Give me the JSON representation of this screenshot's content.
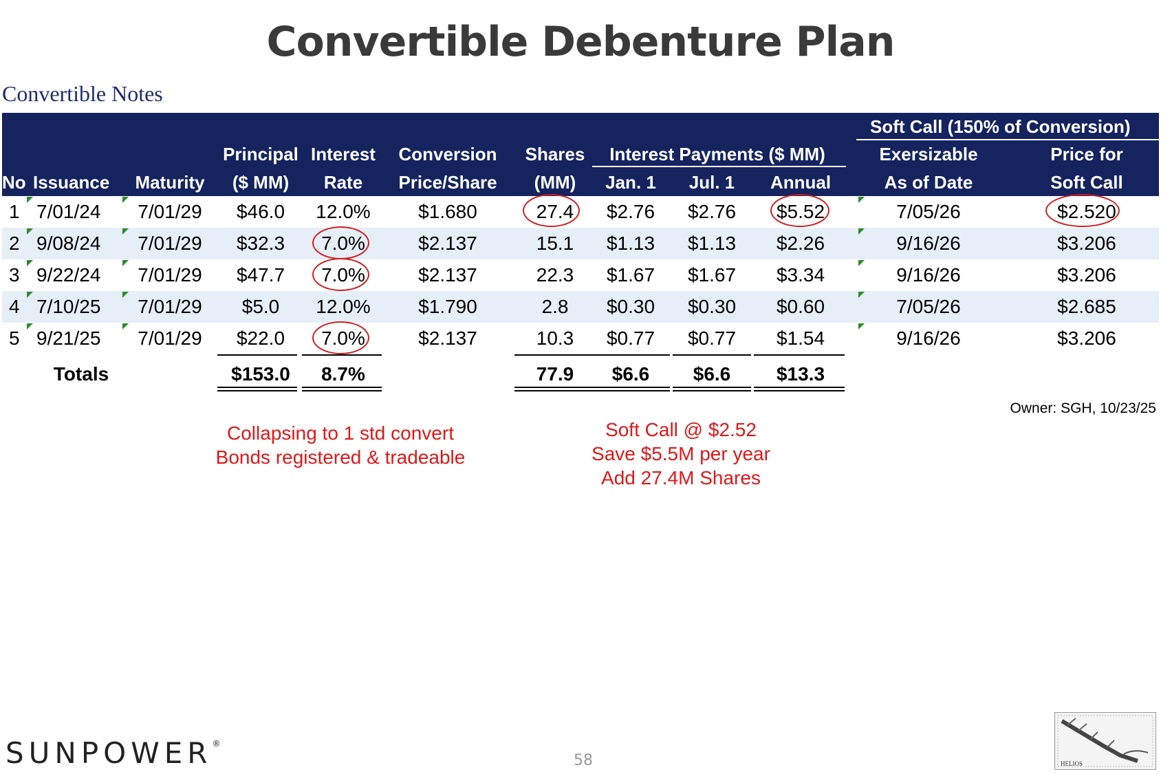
{
  "page": {
    "title": "Convertible Debenture Plan",
    "section": "Convertible Notes",
    "owner": "Owner: SGH, 10/23/25",
    "page_number": "58",
    "logo_text": "SUNPOWER"
  },
  "header": {
    "no": "No",
    "issuance": "Issuance",
    "maturity": "Maturity",
    "principal_1": "Principal",
    "principal_2": "($ MM)",
    "interest_1": "Interest",
    "interest_2": "Rate",
    "conversion_1": "Conversion",
    "conversion_2": "Price/Share",
    "shares_1": "Shares",
    "shares_2": "(MM)",
    "payments_group": "Interest Payments ($ MM)",
    "jan": "Jan. 1",
    "jul": "Jul. 1",
    "annual": "Annual",
    "softcall_group": "Soft Call (150% of Conversion)",
    "exer_1": "Exersizable",
    "exer_2": "As of Date",
    "price_1": "Price for",
    "price_2": "Soft Call"
  },
  "rows": [
    {
      "no": "1",
      "issuance": "7/01/24",
      "maturity": "7/01/29",
      "principal": "$46.0",
      "rate": "12.0%",
      "conv": "$1.680",
      "shares": "27.4",
      "jan": "$2.76",
      "jul": "$2.76",
      "annual": "$5.52",
      "exer": "7/05/26",
      "price": "$2.520"
    },
    {
      "no": "2",
      "issuance": "9/08/24",
      "maturity": "7/01/29",
      "principal": "$32.3",
      "rate": "7.0%",
      "conv": "$2.137",
      "shares": "15.1",
      "jan": "$1.13",
      "jul": "$1.13",
      "annual": "$2.26",
      "exer": "9/16/26",
      "price": "$3.206"
    },
    {
      "no": "3",
      "issuance": "9/22/24",
      "maturity": "7/01/29",
      "principal": "$47.7",
      "rate": "7.0%",
      "conv": "$2.137",
      "shares": "22.3",
      "jan": "$1.67",
      "jul": "$1.67",
      "annual": "$3.34",
      "exer": "9/16/26",
      "price": "$3.206"
    },
    {
      "no": "4",
      "issuance": "7/10/25",
      "maturity": "7/01/29",
      "principal": "$5.0",
      "rate": "12.0%",
      "conv": "$1.790",
      "shares": "2.8",
      "jan": "$0.30",
      "jul": "$0.30",
      "annual": "$0.60",
      "exer": "7/05/26",
      "price": "$2.685"
    },
    {
      "no": "5",
      "issuance": "9/21/25",
      "maturity": "7/01/29",
      "principal": "$22.0",
      "rate": "7.0%",
      "conv": "$2.137",
      "shares": "10.3",
      "jan": "$0.77",
      "jul": "$0.77",
      "annual": "$1.54",
      "exer": "9/16/26",
      "price": "$3.206"
    }
  ],
  "totals": {
    "label": "Totals",
    "principal": "$153.0",
    "rate": "8.7%",
    "shares": "77.9",
    "jan": "$6.6",
    "jul": "$6.6",
    "annual": "$13.3"
  },
  "notes": {
    "left_1": "Collapsing to 1 std convert",
    "left_2": "Bonds registered & tradeable",
    "right_1": "Soft Call @ $2.52",
    "right_2": "Save $5.5M per year",
    "right_3": "Add 27.4M Shares"
  },
  "stamp": {
    "label": "HELIOS"
  },
  "colors": {
    "header_bg": "#15245f",
    "row_shade": "#e6eef8",
    "annotation_red": "#e01818",
    "title_gray": "#3a3a3a"
  }
}
